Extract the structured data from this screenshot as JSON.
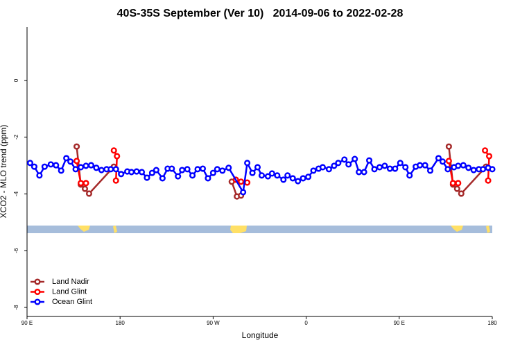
{
  "chart_data": {
    "type": "line",
    "title": "40S-35S September (Ver 10)   2014-09-06 to 2022-02-28",
    "x_label": "Longitude",
    "y_label": "XCO2 - MLO trend (ppm)",
    "xlim": [
      90,
      540
    ],
    "xticks": [
      {
        "value": 90,
        "label": "90 E"
      },
      {
        "value": 180,
        "label": "180"
      },
      {
        "value": 270,
        "label": "90 W"
      },
      {
        "value": 360,
        "label": "0"
      },
      {
        "value": 450,
        "label": "90 E"
      },
      {
        "value": 540,
        "label": "180"
      }
    ],
    "ylim": [
      -8.32,
      1.88
    ],
    "yticks": [
      0,
      -2,
      -4,
      -6,
      -8
    ],
    "legend": "bottom-left",
    "series": [
      {
        "name": "Land Nadir",
        "color": "#a52a2a",
        "x": [
          138,
          142,
          146,
          150,
          174,
          null,
          288,
          293,
          297,
          null,
          498,
          502,
          506,
          510,
          534
        ],
        "values": [
          -2.33,
          -3.67,
          -3.82,
          -3.99,
          -3.04,
          null,
          -3.57,
          -4.09,
          -4.06,
          null,
          -2.33,
          -3.67,
          -3.82,
          -3.99,
          -3.04
        ]
      },
      {
        "name": "Land Glint",
        "color": "#ff0000",
        "x": [
          138,
          142,
          147,
          null,
          174,
          177,
          176,
          null,
          292,
          297,
          303,
          null,
          498,
          502,
          507,
          null,
          533,
          537,
          536
        ],
        "values": [
          -2.84,
          -3.62,
          -3.62,
          null,
          -2.47,
          -2.67,
          -3.53,
          null,
          -3.5,
          -3.57,
          -3.6,
          null,
          -2.84,
          -3.62,
          -3.62,
          null,
          -2.47,
          -2.67,
          -3.53
        ]
      },
      {
        "name": "Ocean Glint",
        "color": "#0000ff",
        "x": [
          93,
          97,
          102,
          107,
          113,
          118,
          123,
          128,
          132,
          137,
          142,
          147,
          152,
          157,
          162,
          167,
          171,
          176,
          181,
          187,
          191,
          196,
          201,
          206,
          211,
          215,
          221,
          226,
          230,
          236,
          240,
          245,
          250,
          255,
          260,
          265,
          270,
          274,
          279,
          285,
          299,
          303,
          308,
          313,
          317,
          323,
          327,
          332,
          338,
          342,
          347,
          352,
          357,
          362,
          367,
          372,
          376,
          382,
          387,
          391,
          397,
          401,
          407,
          411,
          416,
          421,
          426,
          431,
          436,
          441,
          446,
          451,
          456,
          460,
          466,
          470,
          475,
          480,
          488,
          492,
          497,
          503,
          507,
          512,
          517,
          522,
          527,
          531,
          536,
          540
        ],
        "values": [
          -2.91,
          -3.04,
          -3.35,
          -3.04,
          -2.96,
          -2.99,
          -3.18,
          -2.74,
          -2.86,
          -3.13,
          -3.06,
          -3.01,
          -2.99,
          -3.08,
          -3.16,
          -3.13,
          -3.13,
          -3.13,
          -3.3,
          -3.21,
          -3.23,
          -3.21,
          -3.23,
          -3.43,
          -3.26,
          -3.16,
          -3.45,
          -3.11,
          -3.11,
          -3.38,
          -3.16,
          -3.13,
          -3.35,
          -3.13,
          -3.11,
          -3.45,
          -3.26,
          -3.13,
          -3.18,
          -3.08,
          -3.94,
          -2.91,
          -3.26,
          -3.06,
          -3.35,
          -3.38,
          -3.28,
          -3.35,
          -3.5,
          -3.35,
          -3.45,
          -3.55,
          -3.45,
          -3.4,
          -3.18,
          -3.11,
          -3.06,
          -3.13,
          -3.01,
          -2.91,
          -2.79,
          -2.96,
          -2.77,
          -3.23,
          -3.23,
          -2.82,
          -3.13,
          -3.06,
          -3.01,
          -3.11,
          -3.11,
          -2.91,
          -3.06,
          -3.35,
          -3.04,
          -2.99,
          -2.99,
          -3.18,
          -2.74,
          -2.86,
          -3.13,
          -3.06,
          -3.01,
          -2.99,
          -3.08,
          -3.16,
          -3.13,
          -3.13,
          -3.08,
          -3.13
        ]
      }
    ]
  }
}
